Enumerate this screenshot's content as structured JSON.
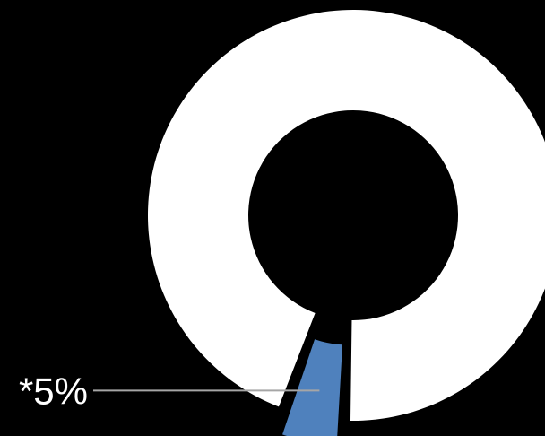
{
  "chart_data": {
    "type": "pie",
    "variant": "donut",
    "background": "#000000",
    "slices": [
      {
        "value": 95,
        "color": "#ffffff",
        "label": ""
      },
      {
        "value": 5,
        "color": "#4f81bd",
        "label": "*5%",
        "exploded": true
      }
    ]
  }
}
